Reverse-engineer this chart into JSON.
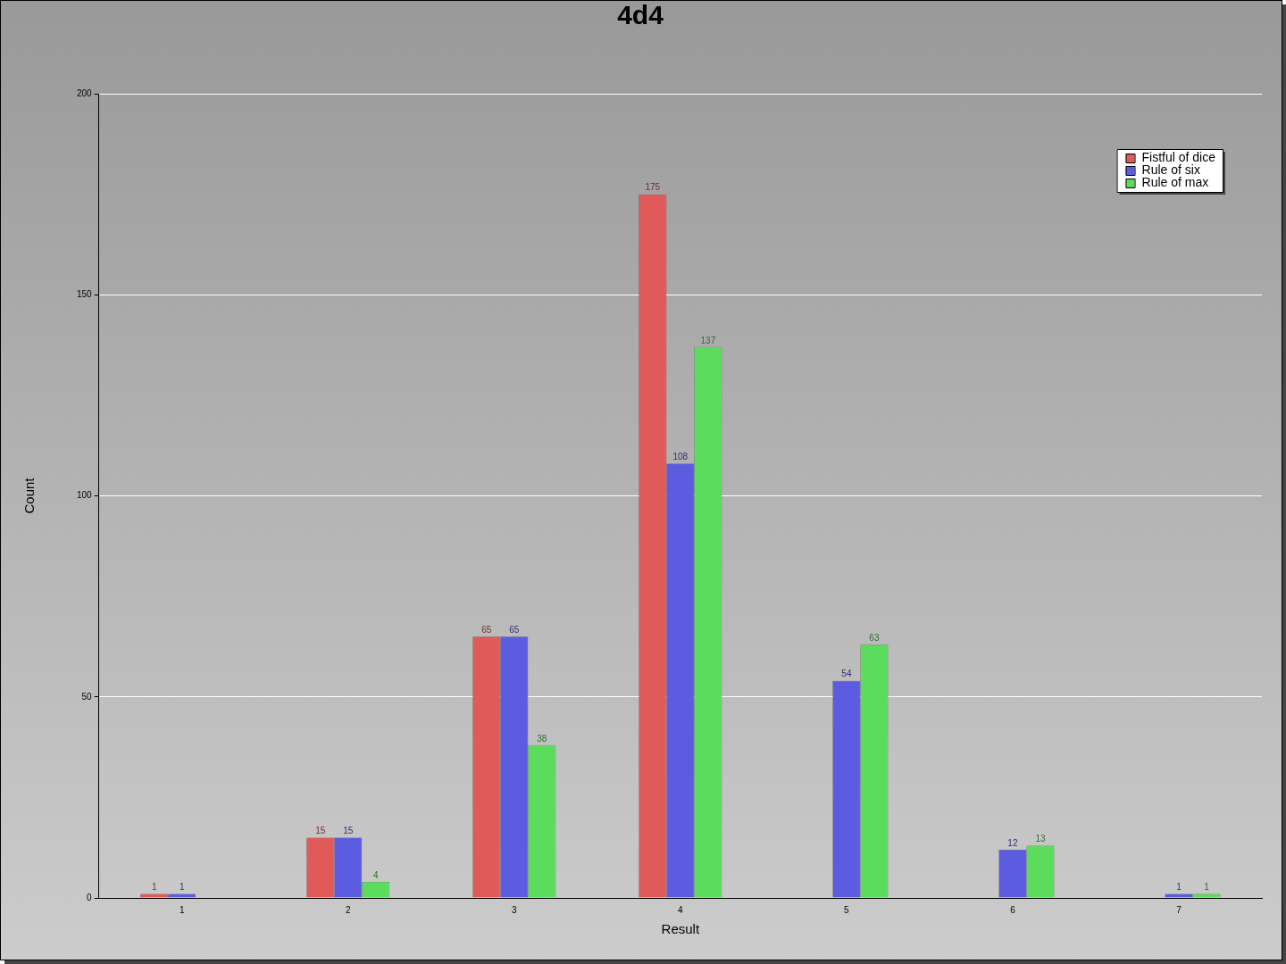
{
  "chart_data": {
    "type": "bar",
    "title": "4d4",
    "xlabel": "Result",
    "ylabel": "Count",
    "categories": [
      "1",
      "2",
      "3",
      "4",
      "5",
      "6",
      "7"
    ],
    "series": [
      {
        "name": "Fistful of dice",
        "color": "#e05a5a",
        "values": [
          1,
          15,
          65,
          175,
          null,
          null,
          null
        ]
      },
      {
        "name": "Rule of six",
        "color": "#5c5ce0",
        "values": [
          1,
          15,
          65,
          108,
          54,
          12,
          1
        ]
      },
      {
        "name": "Rule of max",
        "color": "#5cdc5c",
        "values": [
          null,
          4,
          38,
          137,
          63,
          13,
          1
        ]
      }
    ],
    "ylim": [
      0,
      200
    ],
    "yticks": [
      0,
      50,
      100,
      150,
      200
    ],
    "grid": "y",
    "legend": "top right",
    "data_labels": true
  }
}
